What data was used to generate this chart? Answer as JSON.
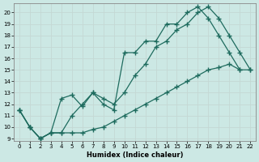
{
  "xlabel": "Humidex (Indice chaleur)",
  "bg_color": "#cce8e4",
  "grid_color": "#b0d4cf",
  "line_color": "#1e6b5e",
  "xlim": [
    -0.5,
    22.5
  ],
  "ylim": [
    8.8,
    20.8
  ],
  "xticks": [
    0,
    1,
    2,
    3,
    4,
    5,
    6,
    7,
    8,
    9,
    10,
    11,
    12,
    13,
    14,
    15,
    16,
    17,
    18,
    19,
    20,
    21,
    22
  ],
  "yticks": [
    9,
    10,
    11,
    12,
    13,
    14,
    15,
    16,
    17,
    18,
    19,
    20
  ],
  "line1_x": [
    0,
    1,
    2,
    3,
    4,
    5,
    6,
    7,
    8,
    9,
    10,
    11,
    12,
    13,
    14,
    15,
    16,
    17,
    18,
    19,
    20,
    21,
    22
  ],
  "line1_y": [
    11.5,
    10.0,
    9.0,
    9.5,
    12.5,
    12.8,
    11.8,
    13.0,
    12.0,
    11.5,
    16.5,
    16.5,
    17.5,
    17.5,
    19.0,
    19.0,
    20.0,
    20.5,
    19.5,
    18.0,
    16.5,
    15.0,
    null
  ],
  "line2_x": [
    0,
    1,
    2,
    3,
    4,
    5,
    6,
    7,
    8,
    9,
    10,
    11,
    12,
    13,
    14,
    15,
    16,
    17,
    18,
    19,
    20,
    21,
    22
  ],
  "line2_y": [
    11.5,
    10.0,
    9.0,
    9.5,
    9.5,
    11.0,
    12.0,
    13.0,
    12.5,
    12.0,
    13.0,
    14.5,
    15.5,
    17.0,
    17.5,
    18.5,
    19.0,
    20.0,
    20.5,
    19.5,
    18.0,
    16.5,
    15.0
  ],
  "line3_x": [
    0,
    1,
    2,
    3,
    4,
    5,
    6,
    7,
    8,
    9,
    10,
    11,
    12,
    13,
    14,
    15,
    16,
    17,
    18,
    19,
    20,
    21,
    22
  ],
  "line3_y": [
    11.5,
    10.0,
    9.0,
    9.5,
    9.5,
    9.5,
    9.5,
    9.8,
    10.0,
    10.5,
    11.0,
    11.5,
    12.0,
    12.5,
    13.0,
    13.5,
    14.0,
    14.5,
    15.0,
    15.2,
    15.5,
    15.0,
    15.0
  ]
}
